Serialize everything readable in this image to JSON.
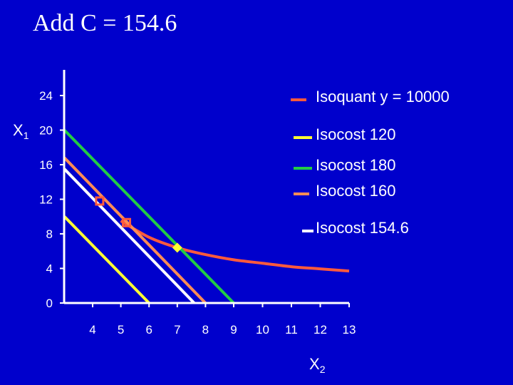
{
  "title": "Add C = 154.6",
  "colors": {
    "background": "#0000CC",
    "axis": "#FFFFFF",
    "isoquant": "#FF5A3C",
    "isocost_120": "#FFFF33",
    "isocost_180": "#22CC44",
    "isocost_160": "#FF8C55",
    "isocost_154_6": "#FFFFFF"
  },
  "chart_data": {
    "type": "line",
    "xlabel": "X",
    "xlabel_sub": "2",
    "ylabel": "X",
    "ylabel_sub": "1",
    "xlim": [
      3,
      13
    ],
    "ylim": [
      0,
      26
    ],
    "x_ticks": [
      "4",
      "5",
      "6",
      "7",
      "8",
      "9",
      "10",
      "11",
      "12",
      "13"
    ],
    "y_ticks": [
      "0",
      "4",
      "8",
      "12",
      "16",
      "20",
      "24"
    ],
    "grid": false,
    "legend_position": "right",
    "series": [
      {
        "name": "Isoquant y = 10000",
        "color_key": "isoquant",
        "kind": "curve",
        "points": [
          [
            5,
            9.5
          ],
          [
            6,
            7.6
          ],
          [
            7,
            6.4
          ],
          [
            8,
            5.6
          ],
          [
            9,
            5.0
          ],
          [
            10,
            4.6
          ],
          [
            11,
            4.2
          ],
          [
            12,
            3.95
          ],
          [
            13,
            3.7
          ]
        ]
      },
      {
        "name": "Isocost 120",
        "color_key": "isocost_120",
        "kind": "line",
        "points": [
          [
            3,
            10
          ],
          [
            6,
            0
          ]
        ]
      },
      {
        "name": "Isocost 180",
        "color_key": "isocost_180",
        "kind": "line",
        "points": [
          [
            3,
            20
          ],
          [
            9,
            0
          ]
        ]
      },
      {
        "name": "Isocost 160",
        "color_key": "isocost_160",
        "kind": "line",
        "points": [
          [
            3,
            16.8
          ],
          [
            8,
            0
          ]
        ]
      },
      {
        "name": "Isocost 154.6",
        "color_key": "isocost_154_6",
        "kind": "line",
        "points": [
          [
            3,
            15.5
          ],
          [
            7.6,
            0
          ]
        ]
      }
    ],
    "markers": [
      {
        "shape": "square",
        "x": 4.25,
        "y": 11.8,
        "color_key": "isoquant"
      },
      {
        "shape": "square",
        "x": 5.2,
        "y": 9.3,
        "color_key": "isoquant"
      },
      {
        "shape": "diamond",
        "x": 7,
        "y": 6.4,
        "color_key": "isocost_120"
      }
    ]
  }
}
